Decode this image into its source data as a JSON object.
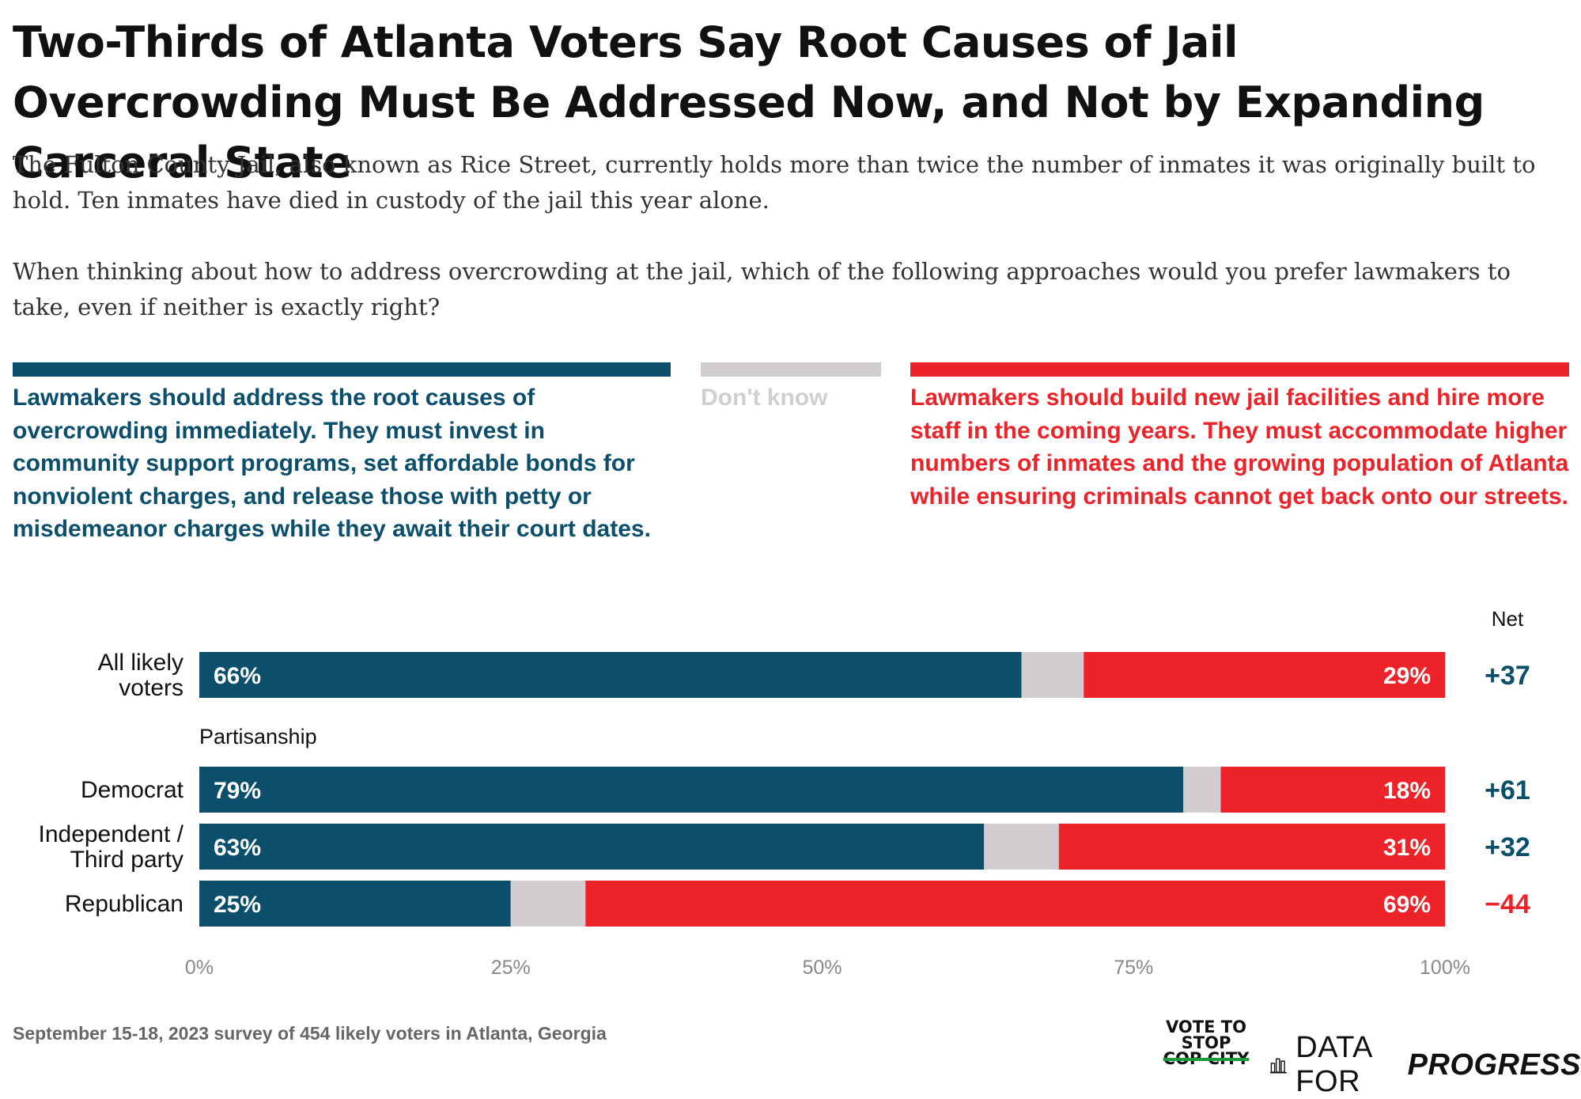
{
  "title": "Two-Thirds of Atlanta Voters Say Root Causes of Jail Overcrowding Must Be Addressed Now, and Not by Expanding Carceral State",
  "subtitle": "The Fulton County Jail, also known as Rice Street, currently holds more than twice the number of inmates it was originally built to hold. Ten inmates have died in custody of the jail this year alone.",
  "question": "When thinking about how to address overcrowding at the jail, which of the following approaches would you prefer lawmakers to take, even if neither is exactly right?",
  "legend": [
    {
      "label": "Lawmakers should address the root causes of overcrowding immediately. They must invest in community support programs, set affordable bonds for nonviolent charges, and release those with petty or misdemeanor charges while they await their court dates.",
      "color": "#0b4f6c"
    },
    {
      "label": "Don't know",
      "color": "#d1cdd0"
    },
    {
      "label": "Lawmakers should build new jail facilities and hire more staff in the coming years. They must accommodate higher numbers of inmates and the growing population of Atlanta while ensuring criminals cannot get back onto our streets.",
      "color": "#ee2229"
    }
  ],
  "chart_data": {
    "type": "bar",
    "orientation": "horizontal",
    "stacked": true,
    "categories": [
      "All likely voters",
      "Democrat",
      "Independent / Third party",
      "Republican"
    ],
    "group_label": "Partisanship",
    "series": [
      {
        "name": "Lawmakers should address the root causes of overcrowding immediately",
        "values": [
          66,
          79,
          63,
          25
        ],
        "labels": [
          "66%",
          "79%",
          "63%",
          "25%"
        ],
        "color": "#0b4f6c"
      },
      {
        "name": "Don't know",
        "values": [
          5,
          3,
          6,
          6
        ],
        "labels": [
          "",
          "",
          "",
          ""
        ],
        "color": "#d1cdd0"
      },
      {
        "name": "Lawmakers should build new jail facilities and hire more staff",
        "values": [
          29,
          18,
          31,
          69
        ],
        "labels": [
          "29%",
          "18%",
          "31%",
          "69%"
        ],
        "color": "#ee2229"
      }
    ],
    "net_header": "Net",
    "net": [
      {
        "text": "+37",
        "color": "#0b4f6c"
      },
      {
        "text": "+61",
        "color": "#0b4f6c"
      },
      {
        "text": "+32",
        "color": "#0b4f6c"
      },
      {
        "text": "−44",
        "color": "#ee2229"
      }
    ],
    "xlim": [
      0,
      100
    ],
    "xticks": [
      "0%",
      "25%",
      "50%",
      "75%",
      "100%"
    ],
    "grid": false
  },
  "footnote": "September 15-18, 2023 survey of 454 likely voters in Atlanta, Georgia",
  "logos": {
    "vote_line1": "VOTE TO",
    "vote_line2": "STOP",
    "vote_line3": "COP CITY",
    "dfp_prefix": "DATA FOR",
    "dfp_strong": "PROGRESS"
  }
}
